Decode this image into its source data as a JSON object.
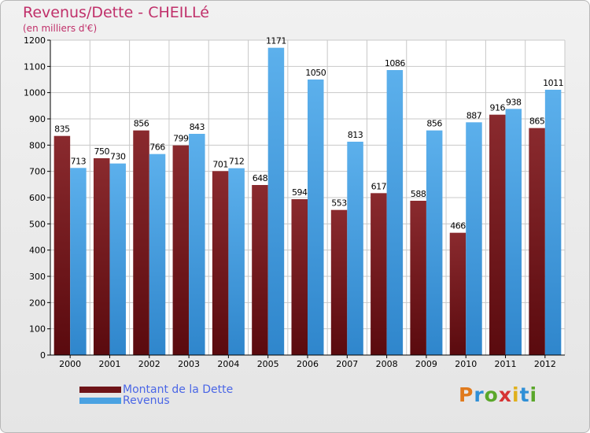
{
  "title": "Revenus/Dette - CHEILLé",
  "subtitle": "(en milliers d'€)",
  "colors": {
    "dette": "#6e1418",
    "revenus": "#4aa2e2",
    "title": "#c0306a",
    "legend_text": "#4a66e6"
  },
  "logo": {
    "text": "Proxiti",
    "letters": [
      "P",
      "r",
      "o",
      "x",
      "i",
      "t",
      "i"
    ]
  },
  "chart_data": {
    "type": "bar",
    "categories": [
      "2000",
      "2001",
      "2002",
      "2003",
      "2004",
      "2005",
      "2006",
      "2007",
      "2008",
      "2009",
      "2010",
      "2011",
      "2012"
    ],
    "series": [
      {
        "name": "Montant de la Dette",
        "values": [
          835,
          750,
          856,
          799,
          701,
          648,
          594,
          553,
          617,
          588,
          466,
          916,
          865
        ]
      },
      {
        "name": "Revenus",
        "values": [
          713,
          730,
          766,
          843,
          712,
          1171,
          1050,
          813,
          1086,
          856,
          887,
          938,
          1011
        ]
      }
    ],
    "ylim": [
      0,
      1200
    ],
    "yticks": [
      "0",
      "100",
      "200",
      "300",
      "400",
      "500",
      "600",
      "700",
      "800",
      "900",
      "1000",
      "1100",
      "1200"
    ],
    "grid": true,
    "legend": "bottom-left",
    "data_labels": true
  }
}
